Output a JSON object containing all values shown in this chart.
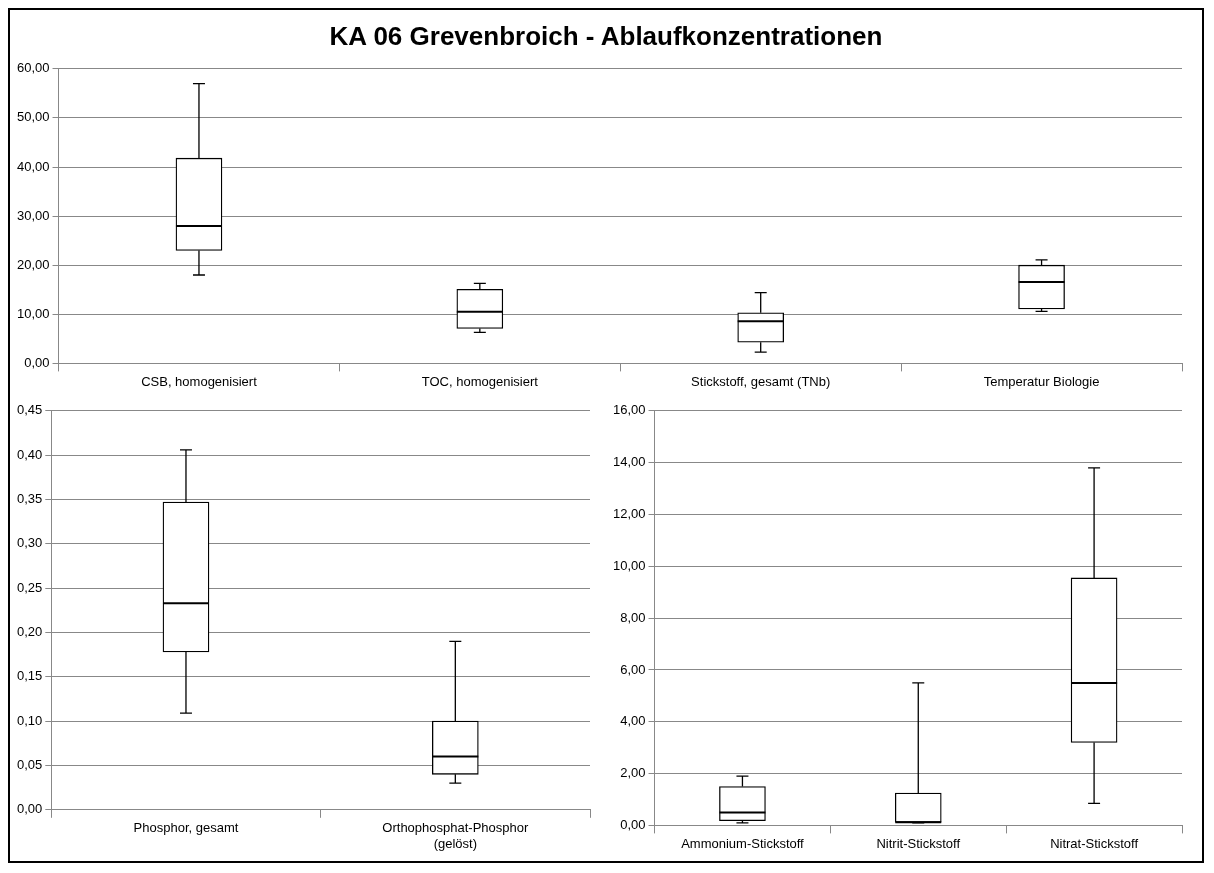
{
  "chart_data": [
    {
      "type": "box",
      "title": "KA 06 Grevenbroich -  Ablaufkonzentrationen",
      "categories": [
        "CSB, homogenisiert",
        "TOC, homogenisiert",
        "Stickstoff, gesamt (TNb)",
        "Temperatur Biologie"
      ],
      "boxes": [
        {
          "low": 18,
          "q1": 23,
          "median": 28,
          "q3": 41.8,
          "high": 57
        },
        {
          "low": 6.3,
          "q1": 7.1,
          "median": 10.5,
          "q3": 15.1,
          "high": 16.3
        },
        {
          "low": 2.3,
          "q1": 4.3,
          "median": 8.6,
          "q3": 10.3,
          "high": 14.4
        },
        {
          "low": 10.6,
          "q1": 11.1,
          "median": 16.6,
          "q3": 20,
          "high": 21.1
        }
      ],
      "ylim": [
        0,
        60
      ],
      "yticks": [
        {
          "value": 0,
          "label": "0,00"
        },
        {
          "value": 10,
          "label": "10,00"
        },
        {
          "value": 20,
          "label": "20,00"
        },
        {
          "value": 30,
          "label": "30,00"
        },
        {
          "value": 40,
          "label": "40,00"
        },
        {
          "value": 50,
          "label": "50,00"
        },
        {
          "value": 60,
          "label": "60,00"
        }
      ],
      "grid": "y"
    },
    {
      "type": "box",
      "categories": [
        "Phosphor, gesamt",
        "Orthophosphat-Phosphor (gelöst)"
      ],
      "boxes": [
        {
          "low": 0.109,
          "q1": 0.178,
          "median": 0.233,
          "q3": 0.347,
          "high": 0.406
        },
        {
          "low": 0.03,
          "q1": 0.04,
          "median": 0.06,
          "q3": 0.1,
          "high": 0.19
        }
      ],
      "ylim": [
        0,
        0.45
      ],
      "yticks": [
        {
          "value": 0,
          "label": "0,00"
        },
        {
          "value": 0.05,
          "label": "0,05"
        },
        {
          "value": 0.1,
          "label": "0,10"
        },
        {
          "value": 0.15,
          "label": "0,15"
        },
        {
          "value": 0.2,
          "label": "0,20"
        },
        {
          "value": 0.25,
          "label": "0,25"
        },
        {
          "value": 0.3,
          "label": "0,30"
        },
        {
          "value": 0.35,
          "label": "0,35"
        },
        {
          "value": 0.4,
          "label": "0,40"
        },
        {
          "value": 0.45,
          "label": "0,45"
        }
      ],
      "grid": "y"
    },
    {
      "type": "box",
      "categories": [
        "Ammonium-Stickstoff",
        "Nitrit-Stickstoff",
        "Nitrat-Stickstoff"
      ],
      "boxes": [
        {
          "low": 0.1,
          "q1": 0.18,
          "median": 0.5,
          "q3": 1.5,
          "high": 1.9
        },
        {
          "low": 0.1,
          "q1": 0.12,
          "median": 0.12,
          "q3": 1.25,
          "high": 5.5
        },
        {
          "low": 0.85,
          "q1": 3.2,
          "median": 5.5,
          "q3": 9.55,
          "high": 13.8
        }
      ],
      "ylim": [
        0,
        16
      ],
      "yticks": [
        {
          "value": 0,
          "label": "0,00"
        },
        {
          "value": 2,
          "label": "2,00"
        },
        {
          "value": 4,
          "label": "4,00"
        },
        {
          "value": 6,
          "label": "6,00"
        },
        {
          "value": 8,
          "label": "8,00"
        },
        {
          "value": 10,
          "label": "10,00"
        },
        {
          "value": 12,
          "label": "12,00"
        },
        {
          "value": 14,
          "label": "14,00"
        },
        {
          "value": 16,
          "label": "16,00"
        }
      ],
      "grid": "y"
    }
  ]
}
